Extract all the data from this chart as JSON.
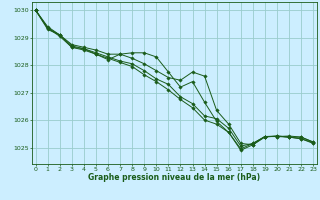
{
  "title": "Graphe pression niveau de la mer (hPa)",
  "bg_color": "#cceeff",
  "grid_color": "#99cccc",
  "line_color": "#1a5c1a",
  "marker_color": "#1a5c1a",
  "xlim": [
    -0.3,
    23.3
  ],
  "ylim": [
    1024.4,
    1030.3
  ],
  "yticks": [
    1025,
    1026,
    1027,
    1028,
    1029,
    1030
  ],
  "xticks": [
    0,
    1,
    2,
    3,
    4,
    5,
    6,
    7,
    8,
    9,
    10,
    11,
    12,
    13,
    14,
    15,
    16,
    17,
    18,
    19,
    20,
    21,
    22,
    23
  ],
  "series": [
    [
      1030.0,
      1029.4,
      1029.1,
      1028.75,
      1028.65,
      1028.55,
      1028.4,
      1028.4,
      1028.25,
      1028.05,
      1027.8,
      1027.55,
      1027.45,
      1027.75,
      1027.6,
      1026.35,
      1025.85,
      1025.15,
      1025.1,
      1025.4,
      1025.4,
      1025.38,
      1025.38,
      1025.2
    ],
    [
      1030.0,
      1029.3,
      1029.1,
      1028.7,
      1028.6,
      1028.4,
      1028.2,
      1028.4,
      1028.45,
      1028.45,
      1028.3,
      1027.75,
      1027.2,
      1027.4,
      1026.65,
      1025.95,
      1025.55,
      1024.95,
      1025.15,
      1025.4,
      1025.4,
      1025.42,
      1025.38,
      1025.2
    ],
    [
      1030.0,
      1029.35,
      1029.1,
      1028.65,
      1028.6,
      1028.45,
      1028.3,
      1028.15,
      1028.05,
      1027.8,
      1027.5,
      1027.3,
      1026.85,
      1026.6,
      1026.15,
      1026.05,
      1025.7,
      1025.05,
      1025.15,
      1025.4,
      1025.42,
      1025.38,
      1025.32,
      1025.18
    ],
    [
      1030.0,
      1029.35,
      1029.05,
      1028.65,
      1028.55,
      1028.4,
      1028.25,
      1028.1,
      1027.95,
      1027.65,
      1027.4,
      1027.1,
      1026.75,
      1026.45,
      1026.0,
      1025.85,
      1025.55,
      1024.9,
      1025.1,
      1025.38,
      1025.42,
      1025.38,
      1025.32,
      1025.15
    ]
  ]
}
